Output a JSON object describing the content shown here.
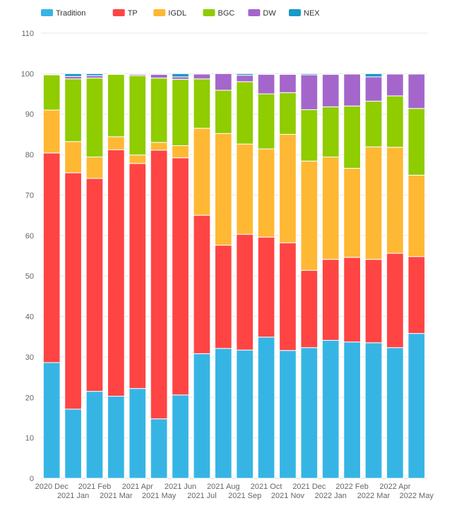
{
  "chart_data": {
    "type": "bar",
    "stacked": true,
    "title": "",
    "xlabel": "",
    "ylabel": "",
    "ylim": [
      0,
      110
    ],
    "yticks": [
      0,
      10,
      20,
      30,
      40,
      50,
      60,
      70,
      80,
      90,
      100,
      110
    ],
    "grid": true,
    "legend_position": "top-left",
    "categories": [
      "2020 Dec",
      "2021 Jan",
      "2021 Feb",
      "2021 Mar",
      "2021 Apr",
      "2021 May",
      "2021 Jun",
      "2021 Jul",
      "2021 Aug",
      "2021 Sep",
      "2021 Oct",
      "2021 Nov",
      "2021 Dec",
      "2022 Jan",
      "2022 Feb",
      "2022 Mar",
      "2022 Apr",
      "2022 May"
    ],
    "series": [
      {
        "name": "Tradition",
        "color": "#36b5e5",
        "values": [
          28.6,
          17.1,
          21.5,
          20.3,
          22.2,
          14.7,
          20.6,
          30.8,
          32.1,
          31.7,
          34.9,
          31.6,
          32.3,
          34.1,
          33.7,
          33.5,
          32.3,
          35.8
        ]
      },
      {
        "name": "TP",
        "color": "#ff4444",
        "values": [
          51.8,
          58.4,
          52.6,
          60.9,
          55.6,
          66.4,
          58.6,
          34.2,
          25.5,
          28.6,
          24.7,
          26.6,
          19.1,
          20.0,
          20.9,
          20.6,
          23.3,
          19.0
        ]
      },
      {
        "name": "IGDL",
        "color": "#ffb833",
        "values": [
          10.6,
          7.7,
          5.3,
          3.2,
          2.1,
          1.9,
          3.0,
          21.5,
          27.6,
          22.3,
          21.8,
          26.8,
          27.0,
          25.3,
          22.0,
          27.8,
          26.2,
          20.1
        ]
      },
      {
        "name": "BGC",
        "color": "#8fcc00",
        "values": [
          8.7,
          15.5,
          19.5,
          15.4,
          19.6,
          15.9,
          16.4,
          12.2,
          10.7,
          15.4,
          13.6,
          10.3,
          12.7,
          12.4,
          15.4,
          11.3,
          12.7,
          16.5
        ]
      },
      {
        "name": "DW",
        "color": "#a566cc",
        "values": [
          0.1,
          0.6,
          0.6,
          0.1,
          0.3,
          0.9,
          0.6,
          1.2,
          4.1,
          1.6,
          4.8,
          4.5,
          8.6,
          8.0,
          7.9,
          6.0,
          5.4,
          8.5
        ]
      },
      {
        "name": "NEX",
        "color": "#1799c9",
        "values": [
          0.2,
          0.7,
          0.5,
          0.1,
          0.2,
          0.2,
          0.8,
          0.1,
          0.0,
          0.4,
          0.2,
          0.2,
          0.3,
          0.2,
          0.1,
          0.8,
          0.1,
          0.1
        ]
      }
    ]
  }
}
